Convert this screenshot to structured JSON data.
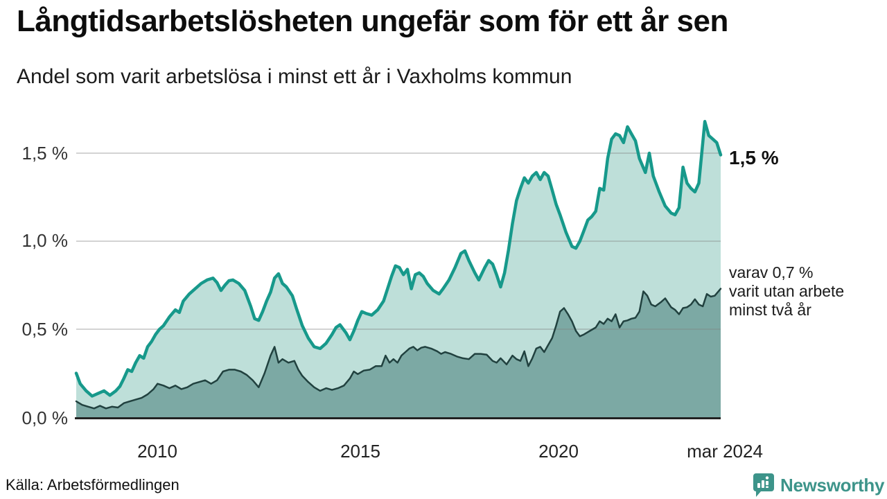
{
  "header": {
    "title": "Långtidsarbetslösheten ungefär som för ett år sen",
    "subtitle": "Andel som varit arbetslösa i minst ett år i Vaxholms kommun"
  },
  "footer": {
    "source": "Källa: Arbetsförmedlingen",
    "brand": "Newsworthy"
  },
  "annotations": {
    "latest_value": "1,5 %",
    "note": "varav 0,7 %\nvarit utan arbete\nminst två år"
  },
  "colors": {
    "series1_line": "#17998b",
    "series1_fill": "#bedfd9",
    "series2_line": "#21413f",
    "series2_fill": "#7ca9a4",
    "gridline": "#d9d9d9",
    "baseline": "#222222",
    "brand_teal": "#3d948a"
  },
  "chart_data": {
    "type": "area",
    "title": "Långtidsarbetslösheten ungefär som för ett år sen",
    "subtitle": "Andel som varit arbetslösa i minst ett år i Vaxholms kommun",
    "unit": "%",
    "grid": "horizontal",
    "x_domain": [
      2008.0,
      2024.25
    ],
    "ylim": [
      0,
      1.7
    ],
    "y_ticks": [
      {
        "value": 1.5,
        "label": "1,5 %"
      },
      {
        "value": 1.0,
        "label": "1,0 %"
      },
      {
        "value": 0.5,
        "label": "0,5 %"
      },
      {
        "value": 0.0,
        "label": "0,0 %"
      }
    ],
    "x_ticks": [
      {
        "year": 2010,
        "label": "2010"
      },
      {
        "year": 2015,
        "label": "2015"
      },
      {
        "year": 2020,
        "label": "2020"
      },
      {
        "year": 2024.25,
        "label": "mar 2024"
      }
    ],
    "series": [
      {
        "name": "arbetslösa minst ett år",
        "last_value_label": "1,5 %",
        "points": [
          [
            2008.0,
            0.25
          ],
          [
            2008.1,
            0.19
          ],
          [
            2008.25,
            0.15
          ],
          [
            2008.4,
            0.12
          ],
          [
            2008.55,
            0.135
          ],
          [
            2008.7,
            0.15
          ],
          [
            2008.85,
            0.125
          ],
          [
            2009.0,
            0.15
          ],
          [
            2009.1,
            0.175
          ],
          [
            2009.2,
            0.22
          ],
          [
            2009.3,
            0.27
          ],
          [
            2009.4,
            0.26
          ],
          [
            2009.5,
            0.31
          ],
          [
            2009.6,
            0.35
          ],
          [
            2009.7,
            0.335
          ],
          [
            2009.8,
            0.4
          ],
          [
            2009.9,
            0.43
          ],
          [
            2010.0,
            0.47
          ],
          [
            2010.1,
            0.5
          ],
          [
            2010.2,
            0.52
          ],
          [
            2010.35,
            0.57
          ],
          [
            2010.5,
            0.61
          ],
          [
            2010.6,
            0.595
          ],
          [
            2010.7,
            0.66
          ],
          [
            2010.85,
            0.7
          ],
          [
            2011.0,
            0.73
          ],
          [
            2011.15,
            0.76
          ],
          [
            2011.3,
            0.78
          ],
          [
            2011.45,
            0.79
          ],
          [
            2011.55,
            0.765
          ],
          [
            2011.65,
            0.72
          ],
          [
            2011.75,
            0.75
          ],
          [
            2011.85,
            0.775
          ],
          [
            2011.95,
            0.78
          ],
          [
            2012.1,
            0.76
          ],
          [
            2012.25,
            0.72
          ],
          [
            2012.4,
            0.63
          ],
          [
            2012.5,
            0.56
          ],
          [
            2012.6,
            0.55
          ],
          [
            2012.7,
            0.6
          ],
          [
            2012.8,
            0.66
          ],
          [
            2012.9,
            0.71
          ],
          [
            2013.0,
            0.79
          ],
          [
            2013.1,
            0.815
          ],
          [
            2013.2,
            0.76
          ],
          [
            2013.3,
            0.74
          ],
          [
            2013.45,
            0.69
          ],
          [
            2013.55,
            0.62
          ],
          [
            2013.7,
            0.52
          ],
          [
            2013.85,
            0.45
          ],
          [
            2014.0,
            0.4
          ],
          [
            2014.15,
            0.39
          ],
          [
            2014.3,
            0.42
          ],
          [
            2014.45,
            0.47
          ],
          [
            2014.55,
            0.51
          ],
          [
            2014.65,
            0.525
          ],
          [
            2014.8,
            0.48
          ],
          [
            2014.9,
            0.44
          ],
          [
            2015.0,
            0.49
          ],
          [
            2015.1,
            0.55
          ],
          [
            2015.2,
            0.6
          ],
          [
            2015.3,
            0.59
          ],
          [
            2015.45,
            0.58
          ],
          [
            2015.6,
            0.61
          ],
          [
            2015.75,
            0.66
          ],
          [
            2015.85,
            0.73
          ],
          [
            2015.95,
            0.8
          ],
          [
            2016.05,
            0.86
          ],
          [
            2016.15,
            0.85
          ],
          [
            2016.25,
            0.81
          ],
          [
            2016.35,
            0.84
          ],
          [
            2016.45,
            0.73
          ],
          [
            2016.55,
            0.81
          ],
          [
            2016.65,
            0.82
          ],
          [
            2016.75,
            0.8
          ],
          [
            2016.85,
            0.76
          ],
          [
            2017.0,
            0.72
          ],
          [
            2017.15,
            0.7
          ],
          [
            2017.25,
            0.73
          ],
          [
            2017.4,
            0.78
          ],
          [
            2017.55,
            0.85
          ],
          [
            2017.7,
            0.93
          ],
          [
            2017.8,
            0.945
          ],
          [
            2017.9,
            0.89
          ],
          [
            2018.05,
            0.82
          ],
          [
            2018.15,
            0.78
          ],
          [
            2018.3,
            0.85
          ],
          [
            2018.4,
            0.89
          ],
          [
            2018.5,
            0.87
          ],
          [
            2018.6,
            0.81
          ],
          [
            2018.7,
            0.74
          ],
          [
            2018.8,
            0.82
          ],
          [
            2018.9,
            0.95
          ],
          [
            2019.0,
            1.1
          ],
          [
            2019.1,
            1.23
          ],
          [
            2019.2,
            1.3
          ],
          [
            2019.3,
            1.36
          ],
          [
            2019.4,
            1.33
          ],
          [
            2019.5,
            1.37
          ],
          [
            2019.6,
            1.39
          ],
          [
            2019.7,
            1.35
          ],
          [
            2019.8,
            1.39
          ],
          [
            2019.9,
            1.37
          ],
          [
            2020.0,
            1.29
          ],
          [
            2020.1,
            1.21
          ],
          [
            2020.2,
            1.15
          ],
          [
            2020.35,
            1.05
          ],
          [
            2020.5,
            0.97
          ],
          [
            2020.6,
            0.96
          ],
          [
            2020.7,
            1.0
          ],
          [
            2020.8,
            1.06
          ],
          [
            2020.9,
            1.12
          ],
          [
            2021.0,
            1.14
          ],
          [
            2021.1,
            1.17
          ],
          [
            2021.2,
            1.3
          ],
          [
            2021.3,
            1.29
          ],
          [
            2021.4,
            1.47
          ],
          [
            2021.5,
            1.58
          ],
          [
            2021.6,
            1.61
          ],
          [
            2021.7,
            1.6
          ],
          [
            2021.8,
            1.56
          ],
          [
            2021.9,
            1.65
          ],
          [
            2022.0,
            1.61
          ],
          [
            2022.1,
            1.57
          ],
          [
            2022.2,
            1.47
          ],
          [
            2022.35,
            1.39
          ],
          [
            2022.45,
            1.5
          ],
          [
            2022.55,
            1.37
          ],
          [
            2022.7,
            1.28
          ],
          [
            2022.85,
            1.2
          ],
          [
            2023.0,
            1.16
          ],
          [
            2023.1,
            1.15
          ],
          [
            2023.2,
            1.19
          ],
          [
            2023.3,
            1.42
          ],
          [
            2023.4,
            1.33
          ],
          [
            2023.5,
            1.3
          ],
          [
            2023.6,
            1.28
          ],
          [
            2023.7,
            1.33
          ],
          [
            2023.85,
            1.68
          ],
          [
            2023.95,
            1.6
          ],
          [
            2024.05,
            1.58
          ],
          [
            2024.15,
            1.56
          ],
          [
            2024.25,
            1.49
          ]
        ]
      },
      {
        "name": "varav utan arbete minst två år",
        "last_value_label": "0,7 %",
        "points": [
          [
            2008.0,
            0.09
          ],
          [
            2008.15,
            0.07
          ],
          [
            2008.3,
            0.06
          ],
          [
            2008.45,
            0.05
          ],
          [
            2008.6,
            0.065
          ],
          [
            2008.75,
            0.05
          ],
          [
            2008.9,
            0.06
          ],
          [
            2009.05,
            0.055
          ],
          [
            2009.2,
            0.08
          ],
          [
            2009.35,
            0.09
          ],
          [
            2009.5,
            0.1
          ],
          [
            2009.65,
            0.11
          ],
          [
            2009.8,
            0.13
          ],
          [
            2009.95,
            0.16
          ],
          [
            2010.05,
            0.19
          ],
          [
            2010.2,
            0.18
          ],
          [
            2010.35,
            0.165
          ],
          [
            2010.5,
            0.18
          ],
          [
            2010.65,
            0.16
          ],
          [
            2010.8,
            0.17
          ],
          [
            2010.95,
            0.19
          ],
          [
            2011.1,
            0.2
          ],
          [
            2011.25,
            0.21
          ],
          [
            2011.4,
            0.19
          ],
          [
            2011.55,
            0.21
          ],
          [
            2011.7,
            0.26
          ],
          [
            2011.85,
            0.27
          ],
          [
            2012.0,
            0.27
          ],
          [
            2012.15,
            0.26
          ],
          [
            2012.3,
            0.24
          ],
          [
            2012.45,
            0.21
          ],
          [
            2012.6,
            0.17
          ],
          [
            2012.75,
            0.25
          ],
          [
            2012.9,
            0.35
          ],
          [
            2013.0,
            0.4
          ],
          [
            2013.1,
            0.31
          ],
          [
            2013.2,
            0.33
          ],
          [
            2013.35,
            0.31
          ],
          [
            2013.5,
            0.32
          ],
          [
            2013.6,
            0.27
          ],
          [
            2013.7,
            0.235
          ],
          [
            2013.85,
            0.2
          ],
          [
            2014.0,
            0.17
          ],
          [
            2014.15,
            0.15
          ],
          [
            2014.3,
            0.165
          ],
          [
            2014.45,
            0.155
          ],
          [
            2014.6,
            0.165
          ],
          [
            2014.75,
            0.18
          ],
          [
            2014.9,
            0.22
          ],
          [
            2015.0,
            0.26
          ],
          [
            2015.1,
            0.245
          ],
          [
            2015.25,
            0.265
          ],
          [
            2015.4,
            0.27
          ],
          [
            2015.55,
            0.29
          ],
          [
            2015.7,
            0.29
          ],
          [
            2015.8,
            0.35
          ],
          [
            2015.9,
            0.31
          ],
          [
            2016.0,
            0.33
          ],
          [
            2016.1,
            0.31
          ],
          [
            2016.2,
            0.35
          ],
          [
            2016.3,
            0.37
          ],
          [
            2016.4,
            0.39
          ],
          [
            2016.5,
            0.4
          ],
          [
            2016.6,
            0.38
          ],
          [
            2016.7,
            0.395
          ],
          [
            2016.8,
            0.4
          ],
          [
            2016.95,
            0.39
          ],
          [
            2017.1,
            0.375
          ],
          [
            2017.2,
            0.36
          ],
          [
            2017.3,
            0.37
          ],
          [
            2017.45,
            0.36
          ],
          [
            2017.6,
            0.345
          ],
          [
            2017.75,
            0.335
          ],
          [
            2017.9,
            0.33
          ],
          [
            2018.05,
            0.36
          ],
          [
            2018.2,
            0.36
          ],
          [
            2018.35,
            0.355
          ],
          [
            2018.5,
            0.32
          ],
          [
            2018.6,
            0.31
          ],
          [
            2018.7,
            0.335
          ],
          [
            2018.85,
            0.3
          ],
          [
            2019.0,
            0.35
          ],
          [
            2019.1,
            0.33
          ],
          [
            2019.2,
            0.32
          ],
          [
            2019.3,
            0.375
          ],
          [
            2019.4,
            0.29
          ],
          [
            2019.5,
            0.335
          ],
          [
            2019.6,
            0.39
          ],
          [
            2019.7,
            0.4
          ],
          [
            2019.8,
            0.37
          ],
          [
            2019.9,
            0.41
          ],
          [
            2020.0,
            0.45
          ],
          [
            2020.1,
            0.52
          ],
          [
            2020.2,
            0.6
          ],
          [
            2020.3,
            0.62
          ],
          [
            2020.4,
            0.585
          ],
          [
            2020.5,
            0.545
          ],
          [
            2020.6,
            0.49
          ],
          [
            2020.7,
            0.46
          ],
          [
            2020.8,
            0.47
          ],
          [
            2020.95,
            0.49
          ],
          [
            2021.1,
            0.51
          ],
          [
            2021.2,
            0.545
          ],
          [
            2021.3,
            0.53
          ],
          [
            2021.4,
            0.56
          ],
          [
            2021.5,
            0.545
          ],
          [
            2021.6,
            0.585
          ],
          [
            2021.7,
            0.51
          ],
          [
            2021.8,
            0.545
          ],
          [
            2021.9,
            0.55
          ],
          [
            2022.0,
            0.56
          ],
          [
            2022.1,
            0.565
          ],
          [
            2022.2,
            0.6
          ],
          [
            2022.3,
            0.715
          ],
          [
            2022.4,
            0.69
          ],
          [
            2022.5,
            0.64
          ],
          [
            2022.6,
            0.63
          ],
          [
            2022.75,
            0.655
          ],
          [
            2022.85,
            0.675
          ],
          [
            2023.0,
            0.625
          ],
          [
            2023.1,
            0.61
          ],
          [
            2023.2,
            0.585
          ],
          [
            2023.3,
            0.62
          ],
          [
            2023.4,
            0.625
          ],
          [
            2023.5,
            0.64
          ],
          [
            2023.6,
            0.67
          ],
          [
            2023.7,
            0.64
          ],
          [
            2023.8,
            0.63
          ],
          [
            2023.9,
            0.7
          ],
          [
            2024.0,
            0.685
          ],
          [
            2024.1,
            0.69
          ],
          [
            2024.25,
            0.73
          ]
        ]
      }
    ],
    "legend": "none",
    "annotations": [
      "1,5 %",
      "varav 0,7 % varit utan arbete minst två år"
    ]
  }
}
